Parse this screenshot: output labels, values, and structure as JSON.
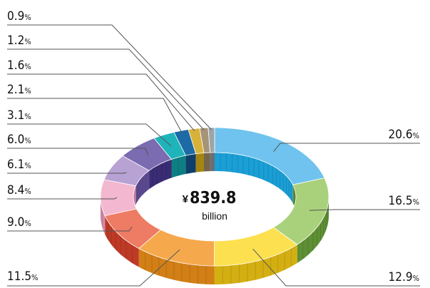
{
  "chart_data": {
    "type": "pie",
    "center": {
      "currency": "¥",
      "amount": "839.8",
      "unit": "billion"
    },
    "slices": [
      {
        "value": 20.6,
        "display": "20.6",
        "color": "#6fc3ee",
        "side": "#1a9fd6"
      },
      {
        "value": 16.5,
        "display": "16.5",
        "color": "#a9d17b",
        "side": "#5e8f34"
      },
      {
        "value": 12.9,
        "display": "12.9",
        "color": "#fde050",
        "side": "#d4af12"
      },
      {
        "value": 11.5,
        "display": "11.5",
        "color": "#f5a94c",
        "side": "#d27f16"
      },
      {
        "value": 9.0,
        "display": "9.0",
        "color": "#ee7b63",
        "side": "#bd3a26"
      },
      {
        "value": 8.4,
        "display": "8.4",
        "color": "#f3b7cf",
        "side": "#d48aa8"
      },
      {
        "value": 6.1,
        "display": "6.1",
        "color": "#b8a2d4",
        "side": "#5c4a91"
      },
      {
        "value": 6.0,
        "display": "6.0",
        "color": "#7b6bb1",
        "side": "#3a2c74"
      },
      {
        "value": 3.1,
        "display": "3.1",
        "color": "#1fb4ba",
        "side": "#0d7f83"
      },
      {
        "value": 2.1,
        "display": "2.1",
        "color": "#1c6aa6",
        "side": "#0e3f6b"
      },
      {
        "value": 1.6,
        "display": "1.6",
        "color": "#d7b23a",
        "side": "#a5850f"
      },
      {
        "value": 1.2,
        "display": "1.2",
        "color": "#a69478",
        "side": "#75654d"
      },
      {
        "value": 0.9,
        "display": "0.9",
        "color": "#9fa4a9",
        "side": "#6a6f74"
      }
    ],
    "percent_sign": "%"
  }
}
